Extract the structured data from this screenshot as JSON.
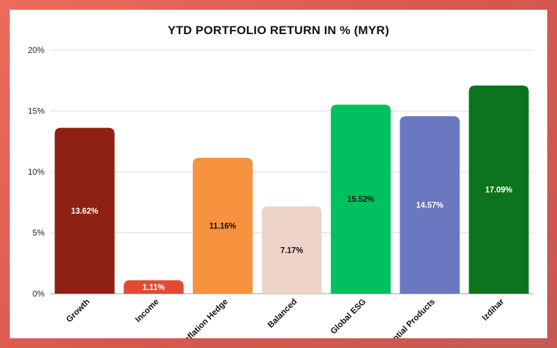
{
  "chart_data": {
    "type": "bar",
    "title": "YTD PORTFOLIO RETURN IN % (MYR)",
    "xlabel": "",
    "ylabel": "",
    "ylim": [
      0,
      20
    ],
    "yticks": [
      0,
      5,
      10,
      15,
      20
    ],
    "ytick_labels": [
      "0%",
      "5%",
      "10%",
      "15%",
      "20%"
    ],
    "grid": true,
    "legend": "none",
    "categories": [
      "Growth",
      "Income",
      "Inflation Hedge",
      "Balanced",
      "Global ESG",
      "Essential Products",
      "Izdihar"
    ],
    "values": [
      13.62,
      1.11,
      11.16,
      7.17,
      15.52,
      14.57,
      17.09
    ],
    "value_labels": [
      "13.62%",
      "1.11%",
      "11.16%",
      "7.17%",
      "15.52%",
      "14.57%",
      "17.09%"
    ],
    "colors": [
      "#8e2113",
      "#e24a33",
      "#f7923f",
      "#eed3c8",
      "#00c060",
      "#6a77c1",
      "#0c741c"
    ],
    "label_colors": [
      "#ffffff",
      "#ffffff",
      "#111111",
      "#111111",
      "#111111",
      "#ffffff",
      "#ffffff"
    ]
  }
}
